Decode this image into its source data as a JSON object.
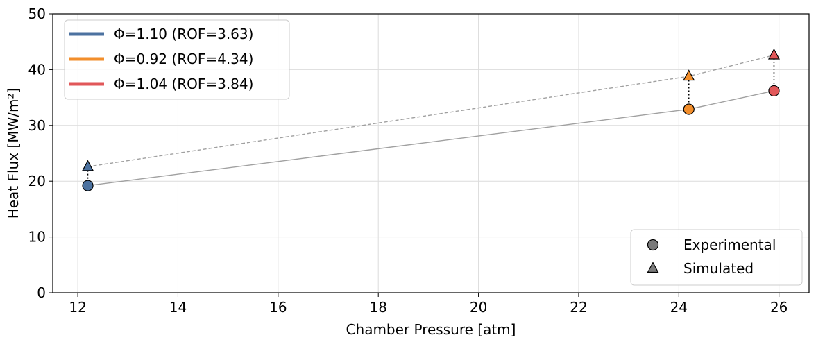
{
  "chart_data": {
    "type": "line",
    "xlabel": "Chamber Pressure [atm]",
    "ylabel": "Heat Flux [MW/m²]",
    "xlim": [
      11.5,
      26.6
    ],
    "ylim": [
      0,
      50
    ],
    "xticks": [
      12,
      14,
      16,
      18,
      20,
      22,
      24,
      26
    ],
    "yticks": [
      0,
      10,
      20,
      30,
      40,
      50
    ],
    "grid": true,
    "legend_placement": "top-left",
    "marker_legend_placement": "bottom-right",
    "series": [
      {
        "name": "Φ=1.10 (ROF=3.63)",
        "color": "#4c72a0",
        "x": 12.2,
        "experimental": 19.2,
        "simulated": 22.6
      },
      {
        "name": "Φ=0.92 (ROF=4.34)",
        "color": "#f28e2b",
        "x": 24.2,
        "experimental": 32.9,
        "simulated": 38.8
      },
      {
        "name": "Φ=1.04 (ROF=3.84)",
        "color": "#e15759",
        "x": 25.9,
        "experimental": 36.2,
        "simulated": 42.6
      }
    ],
    "marker_legend": [
      {
        "label": "Experimental",
        "shape": "circle"
      },
      {
        "label": "Simulated",
        "shape": "triangle"
      }
    ],
    "trend_lines": {
      "experimental": {
        "style": "solid",
        "color": "#a0a0a0"
      },
      "simulated": {
        "style": "dashed",
        "color": "#a0a0a0"
      }
    }
  }
}
